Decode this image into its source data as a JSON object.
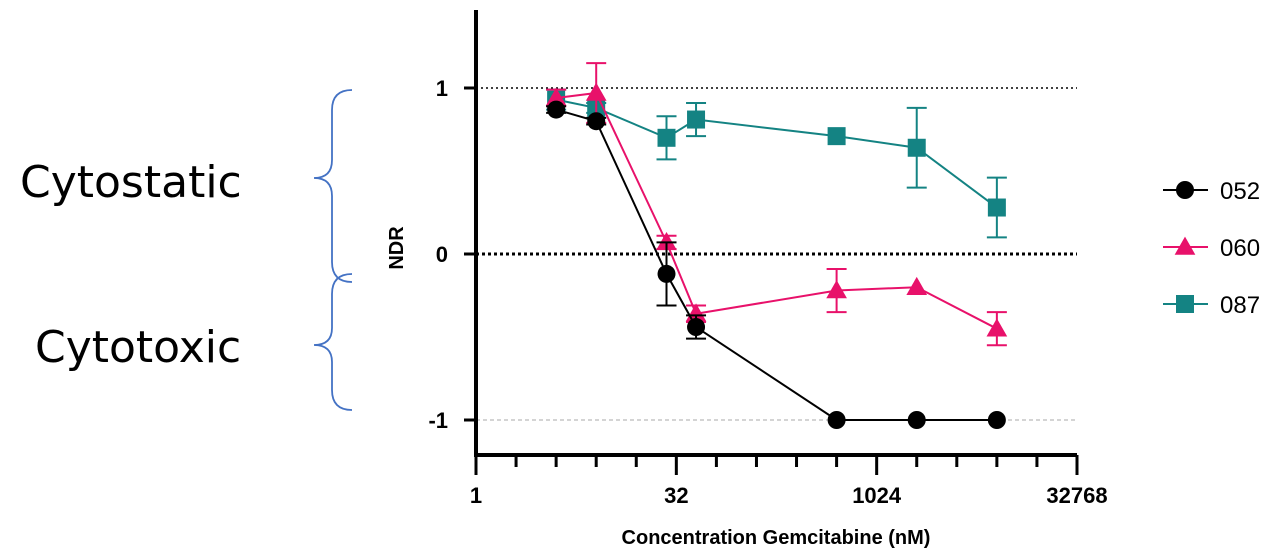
{
  "chart_data": {
    "type": "line",
    "xlabel": "Concentration Gemcitabine (nM)",
    "ylabel": "NDR",
    "xscale": "log2",
    "xlim": [
      1,
      32768
    ],
    "ylim": [
      -1.2,
      1.45
    ],
    "x_ticks": [
      1,
      32,
      1024,
      32768
    ],
    "x_tick_labels": [
      "1",
      "32",
      "1024",
      "32768"
    ],
    "y_ticks": [
      -1,
      0,
      1
    ],
    "y_tick_labels": [
      "-1",
      "0",
      "1"
    ],
    "reference_lines": [
      {
        "y": 1,
        "style": "dotted",
        "color": "#000000"
      },
      {
        "y": 0,
        "style": "dotted-bold",
        "color": "#000000"
      },
      {
        "y": -1,
        "style": "dashed-light",
        "color": "#bbbbbb"
      }
    ],
    "legend_position": "right",
    "series": [
      {
        "name": "052",
        "color": "#000000",
        "marker": "circle",
        "x": [
          4,
          8,
          27,
          45,
          512,
          2048,
          8192
        ],
        "y": [
          0.87,
          0.8,
          -0.12,
          -0.44,
          -1.0,
          -1.0,
          -1.0
        ],
        "err": [
          0.02,
          0.02,
          0.19,
          0.07,
          0,
          0,
          0
        ]
      },
      {
        "name": "060",
        "color": "#e8116a",
        "marker": "triangle",
        "x": [
          4,
          8,
          27,
          45,
          512,
          2048,
          8192
        ],
        "y": [
          0.94,
          0.97,
          0.07,
          -0.36,
          -0.22,
          -0.2,
          -0.45
        ],
        "err": [
          0.05,
          0.18,
          0.04,
          0.05,
          0.13,
          0,
          0.1
        ]
      },
      {
        "name": "087",
        "color": "#148383",
        "marker": "square",
        "x": [
          4,
          8,
          27,
          45,
          512,
          2048,
          8192
        ],
        "y": [
          0.93,
          0.88,
          0.7,
          0.81,
          0.71,
          0.64,
          0.28
        ],
        "err": [
          0.06,
          0.03,
          0.13,
          0.1,
          0,
          0.24,
          0.18
        ]
      }
    ]
  },
  "annotations": {
    "upper_label": "Cytostatic",
    "lower_label": "Cytotoxic",
    "brace_color": "#4472c4"
  }
}
